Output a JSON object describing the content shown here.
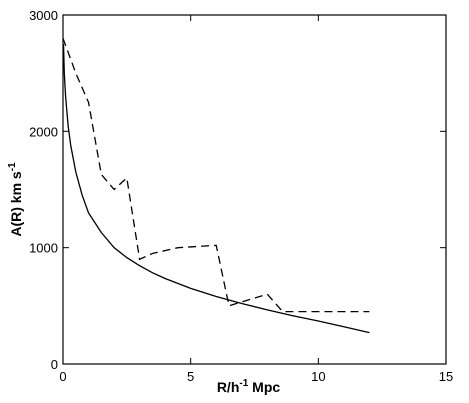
{
  "chart_data": {
    "type": "line",
    "title": "",
    "xlabel": {
      "base": "R/h",
      "sup": "-1",
      "suffix": " Mpc"
    },
    "ylabel": {
      "base": "A(R) km s",
      "sup": "-1"
    },
    "xlim": [
      0,
      15
    ],
    "ylim": [
      0,
      3000
    ],
    "xticks": [
      0,
      5,
      10,
      15
    ],
    "yticks": [
      0,
      1000,
      2000,
      3000
    ],
    "xtick_labels": [
      "0",
      "5",
      "10",
      "15"
    ],
    "ytick_labels": [
      "0",
      "1000",
      "2000",
      "3000"
    ],
    "grid": false,
    "legend": "none",
    "series": [
      {
        "style": "solid",
        "color": "#000000",
        "x": [
          0.02,
          0.05,
          0.1,
          0.2,
          0.3,
          0.5,
          0.75,
          1.0,
          1.5,
          2.0,
          2.5,
          3.0,
          3.5,
          4.0,
          5.0,
          6.0,
          7.0,
          8.0,
          9.0,
          10.0,
          11.0,
          12.0
        ],
        "y": [
          2750,
          2500,
          2300,
          2050,
          1880,
          1650,
          1450,
          1300,
          1130,
          1000,
          915,
          845,
          785,
          735,
          650,
          580,
          520,
          465,
          415,
          370,
          320,
          270
        ]
      },
      {
        "style": "dashed",
        "color": "#000000",
        "x": [
          0.0,
          0.5,
          1.0,
          1.5,
          2.0,
          2.5,
          3.0,
          3.5,
          4.5,
          6.0,
          6.5,
          8.0,
          8.6,
          12.0
        ],
        "y": [
          2800,
          2500,
          2250,
          1630,
          1500,
          1600,
          900,
          950,
          1000,
          1020,
          500,
          600,
          450,
          450
        ]
      }
    ]
  }
}
